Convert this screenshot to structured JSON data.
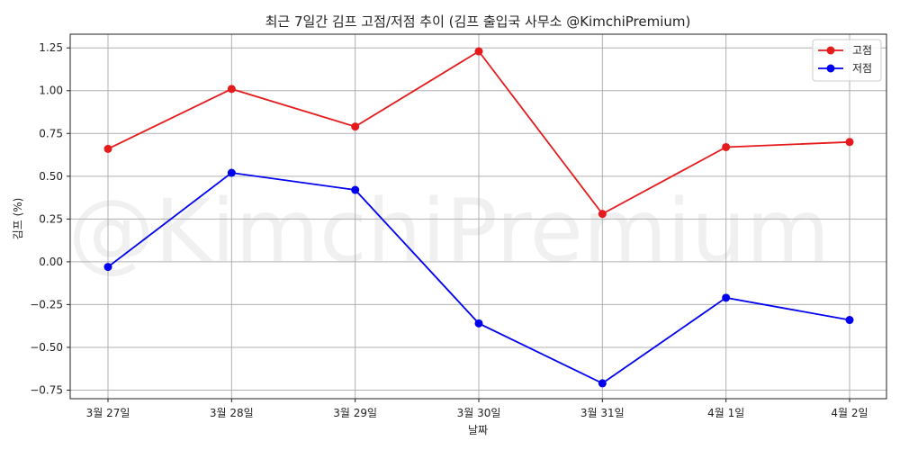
{
  "chart_data": {
    "type": "line",
    "title": "최근 7일간 김프 고점/저점 추이 (김프 출입국 사무소 @KimchiPremium)",
    "xlabel": "날짜",
    "ylabel": "김프 (%)",
    "watermark": "@KimchiPremium",
    "categories": [
      "3월 27일",
      "3월 28일",
      "3월 29일",
      "3월 30일",
      "3월 31일",
      "4월 1일",
      "4월 2일"
    ],
    "ylim": [
      -0.8,
      1.33
    ],
    "yticks": [
      -0.75,
      -0.5,
      -0.25,
      0.0,
      0.25,
      0.5,
      0.75,
      1.0,
      1.25
    ],
    "ytick_labels": [
      "−0.75",
      "−0.50",
      "−0.25",
      "0.00",
      "0.25",
      "0.50",
      "0.75",
      "1.00",
      "1.25"
    ],
    "grid": true,
    "legend_position": "top-right",
    "series": [
      {
        "name": "고점",
        "color": "#e41a1c",
        "values": [
          0.66,
          1.01,
          0.79,
          1.23,
          0.28,
          0.67,
          0.7
        ]
      },
      {
        "name": "저점",
        "color": "#0000ee",
        "values": [
          -0.03,
          0.52,
          0.42,
          -0.36,
          -0.71,
          -0.21,
          -0.34
        ]
      }
    ]
  }
}
